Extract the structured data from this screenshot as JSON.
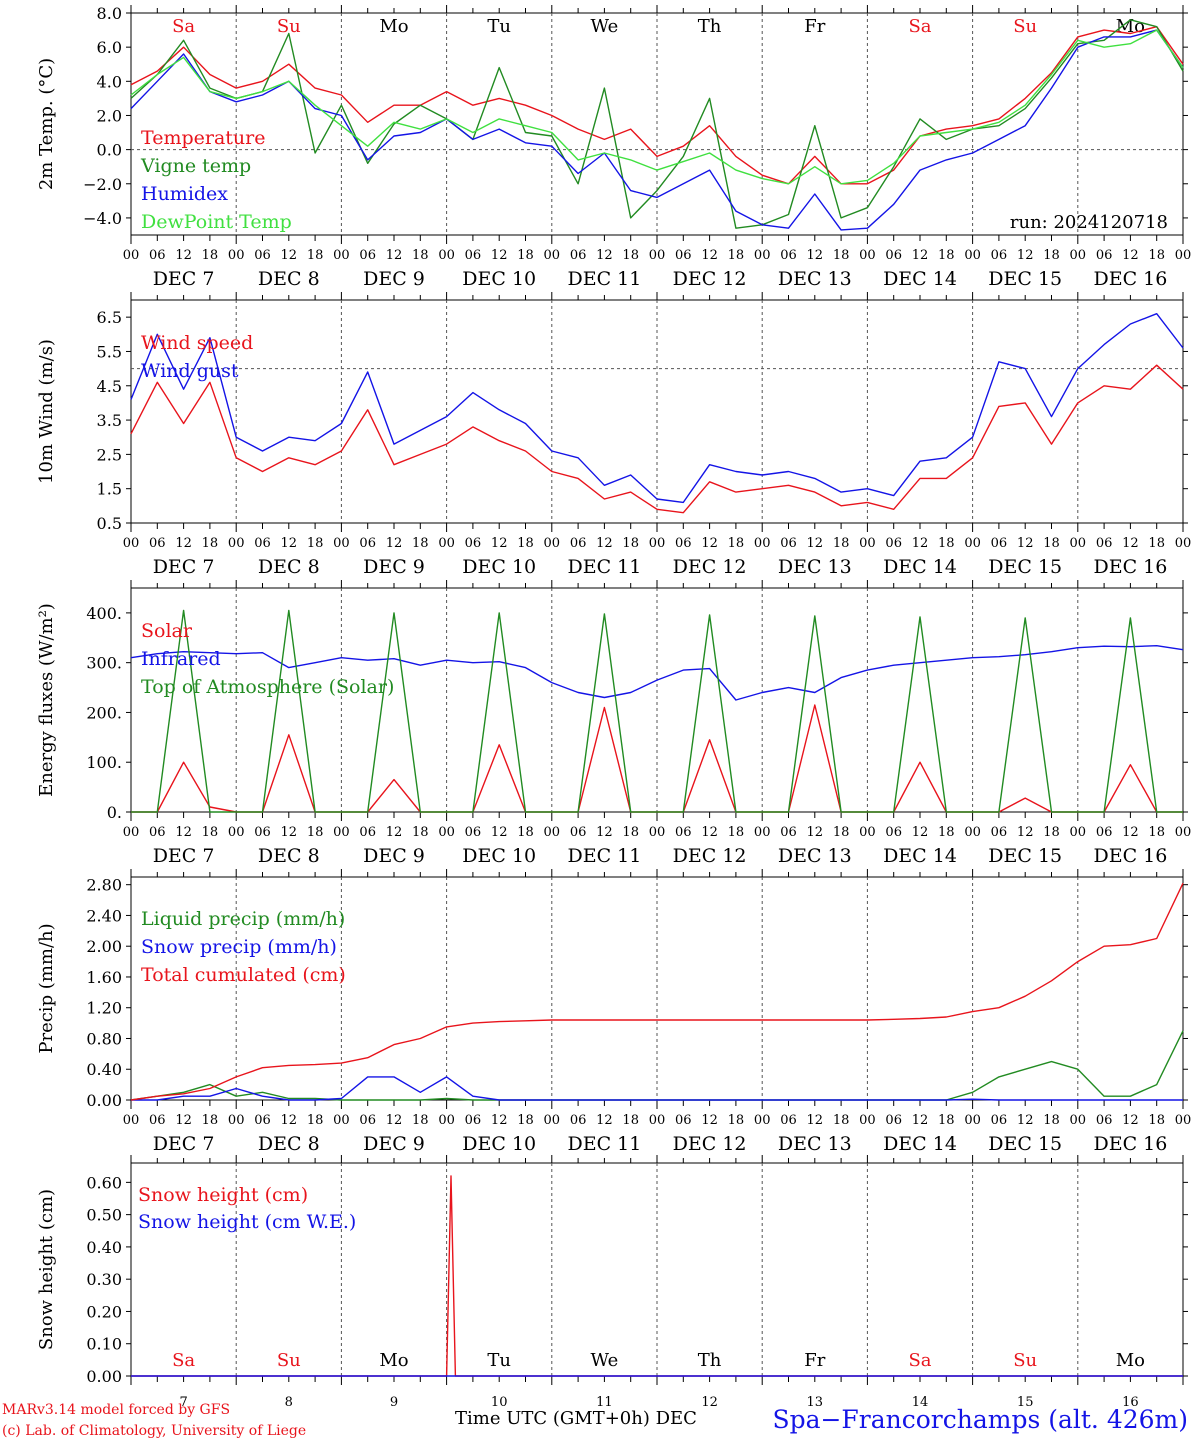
{
  "meta": {
    "run": "run: 2024120718",
    "footer_model": "MARv3.14 model forced by GFS",
    "footer_lab": "(c) Lab. of Climatology, University of Liege",
    "location": "Spa−Francorchamps (alt. 426m)",
    "xaxis_title": "Time UTC (GMT+0h) DEC"
  },
  "days": [
    {
      "abbr": "Sa",
      "date": "DEC  7",
      "num": "7",
      "weekend": true
    },
    {
      "abbr": "Su",
      "date": "DEC  8",
      "num": "8",
      "weekend": true
    },
    {
      "abbr": "Mo",
      "date": "DEC  9",
      "num": "9",
      "weekend": false
    },
    {
      "abbr": "Tu",
      "date": "DEC 10",
      "num": "10",
      "weekend": false
    },
    {
      "abbr": "We",
      "date": "DEC 11",
      "num": "11",
      "weekend": false
    },
    {
      "abbr": "Th",
      "date": "DEC 12",
      "num": "12",
      "weekend": false
    },
    {
      "abbr": "Fr",
      "date": "DEC 13",
      "num": "13",
      "weekend": false
    },
    {
      "abbr": "Sa",
      "date": "DEC 14",
      "num": "14",
      "weekend": true
    },
    {
      "abbr": "Su",
      "date": "DEC 15",
      "num": "15",
      "weekend": true
    },
    {
      "abbr": "Mo",
      "date": "DEC 16",
      "num": "16",
      "weekend": false
    }
  ],
  "hour_ticks": [
    "00",
    "06",
    "12",
    "18"
  ],
  "colors": {
    "red": "#e8141c",
    "green": "#228b22",
    "blue": "#1414e6",
    "lightgreen": "#40e040",
    "weekend": "#e8141c",
    "dash": "#555555"
  },
  "chart_data": [
    {
      "type": "line",
      "ylabel": "2m Temp. (°C)",
      "ylim": [
        -5.0,
        8.0
      ],
      "yticks": [
        -4,
        -2,
        0,
        2,
        4,
        6,
        8
      ],
      "ytick_labels": [
        "−4.0",
        "−2.0",
        "0.0",
        "2.0",
        "4.0",
        "6.0",
        "8.0"
      ],
      "refline": 0,
      "show_day_abbr": true,
      "x_hours": [
        0,
        6,
        12,
        18,
        24,
        30,
        36,
        42,
        48,
        54,
        60,
        66,
        72,
        78,
        84,
        90,
        96,
        102,
        108,
        114,
        120,
        126,
        132,
        138,
        144,
        150,
        156,
        162,
        168,
        174,
        180,
        186,
        192,
        198,
        204,
        210,
        216,
        222,
        228,
        234,
        240
      ],
      "series": [
        {
          "name": "Temperature",
          "color": "red",
          "values": [
            3.8,
            4.6,
            6.0,
            4.4,
            3.6,
            4.0,
            5.0,
            3.6,
            3.2,
            1.6,
            2.6,
            2.6,
            3.4,
            2.6,
            3.0,
            2.6,
            2.0,
            1.2,
            0.6,
            1.2,
            -0.4,
            0.2,
            1.4,
            -0.4,
            -1.5,
            -2.0,
            -0.4,
            -2.0,
            -2.0,
            -1.2,
            0.8,
            1.2,
            1.4,
            1.8,
            3.0,
            4.5,
            6.6,
            7.0,
            6.8,
            7.2,
            5.0
          ]
        },
        {
          "name": "Vigne temp",
          "color": "green",
          "values": [
            3.0,
            4.4,
            6.4,
            3.6,
            3.0,
            3.4,
            6.8,
            -0.2,
            2.6,
            -0.8,
            1.5,
            2.6,
            1.8,
            0.6,
            4.8,
            1.0,
            0.8,
            -2.0,
            3.6,
            -4.0,
            -2.4,
            -0.4,
            3.0,
            -4.6,
            -4.4,
            -3.8,
            1.4,
            -4.0,
            -3.4,
            -1.0,
            1.8,
            0.6,
            1.2,
            1.4,
            2.4,
            4.2,
            6.2,
            6.4,
            7.6,
            7.2,
            4.6
          ]
        },
        {
          "name": "Humidex",
          "color": "blue",
          "values": [
            2.4,
            4.0,
            5.6,
            3.4,
            2.8,
            3.2,
            4.0,
            2.4,
            2.0,
            -0.6,
            0.8,
            1.0,
            1.8,
            0.6,
            1.2,
            0.4,
            0.2,
            -1.4,
            -0.2,
            -2.4,
            -2.8,
            -2.0,
            -1.2,
            -3.6,
            -4.4,
            -4.6,
            -2.6,
            -4.7,
            -4.6,
            -3.2,
            -1.2,
            -0.6,
            -0.2,
            0.6,
            1.4,
            3.6,
            6.0,
            6.6,
            6.6,
            7.0,
            4.8
          ]
        },
        {
          "name": "DewPoint Temp",
          "color": "lightgreen",
          "values": [
            3.2,
            4.4,
            5.4,
            3.4,
            3.0,
            3.4,
            4.0,
            2.6,
            1.4,
            0.2,
            1.6,
            1.2,
            1.8,
            1.0,
            1.8,
            1.4,
            1.0,
            -0.6,
            -0.2,
            -0.6,
            -1.2,
            -0.7,
            -0.2,
            -1.2,
            -1.7,
            -2.0,
            -1.0,
            -2.0,
            -1.8,
            -0.8,
            0.8,
            1.0,
            1.2,
            1.6,
            2.6,
            4.4,
            6.4,
            6.0,
            6.2,
            7.0,
            4.8
          ]
        }
      ]
    },
    {
      "type": "line",
      "ylabel": "10m Wind (m/s)",
      "ylim": [
        0.5,
        7.0
      ],
      "yticks": [
        0.5,
        1.5,
        2.5,
        3.5,
        4.5,
        5.5,
        6.5
      ],
      "ytick_labels": [
        "0.5",
        "1.5",
        "2.5",
        "3.5",
        "4.5",
        "5.5",
        "6.5"
      ],
      "refline": 5.0,
      "show_day_abbr": false,
      "x_hours": [
        0,
        6,
        12,
        18,
        24,
        30,
        36,
        42,
        48,
        54,
        60,
        66,
        72,
        78,
        84,
        90,
        96,
        102,
        108,
        114,
        120,
        126,
        132,
        138,
        144,
        150,
        156,
        162,
        168,
        174,
        180,
        186,
        192,
        198,
        204,
        210,
        216,
        222,
        228,
        234,
        240
      ],
      "series": [
        {
          "name": "Wind speed",
          "color": "red",
          "values": [
            3.1,
            4.6,
            3.4,
            4.6,
            2.4,
            2.0,
            2.4,
            2.2,
            2.6,
            3.8,
            2.2,
            2.5,
            2.8,
            3.3,
            2.9,
            2.6,
            2.0,
            1.8,
            1.2,
            1.4,
            0.9,
            0.8,
            1.7,
            1.4,
            1.5,
            1.6,
            1.4,
            1.0,
            1.1,
            0.9,
            1.8,
            1.8,
            2.4,
            3.9,
            4.0,
            2.8,
            4.0,
            4.5,
            4.4,
            5.1,
            4.4
          ]
        },
        {
          "name": "Wind gust",
          "color": "blue",
          "values": [
            4.1,
            6.0,
            4.4,
            5.9,
            3.0,
            2.6,
            3.0,
            2.9,
            3.4,
            4.9,
            2.8,
            3.2,
            3.6,
            4.3,
            3.8,
            3.4,
            2.6,
            2.4,
            1.6,
            1.9,
            1.2,
            1.1,
            2.2,
            2.0,
            1.9,
            2.0,
            1.8,
            1.4,
            1.5,
            1.3,
            2.3,
            2.4,
            3.0,
            5.2,
            5.0,
            3.6,
            5.0,
            5.7,
            6.3,
            6.6,
            5.6
          ]
        }
      ]
    },
    {
      "type": "line",
      "ylabel": "Energy fluxes (W/m²)",
      "ylim": [
        0,
        450
      ],
      "yticks": [
        0,
        100,
        200,
        300,
        400
      ],
      "ytick_labels": [
        "0.",
        "100.",
        "200.",
        "300.",
        "400."
      ],
      "refline": null,
      "show_day_abbr": false,
      "x_hours": [
        0,
        6,
        12,
        18,
        24,
        30,
        36,
        42,
        48,
        54,
        60,
        66,
        72,
        78,
        84,
        90,
        96,
        102,
        108,
        114,
        120,
        126,
        132,
        138,
        144,
        150,
        156,
        162,
        168,
        174,
        180,
        186,
        192,
        198,
        204,
        210,
        216,
        222,
        228,
        234,
        240
      ],
      "series": [
        {
          "name": "Solar",
          "color": "red",
          "values": [
            0,
            0,
            100,
            10,
            0,
            0,
            155,
            0,
            0,
            0,
            65,
            0,
            0,
            0,
            135,
            0,
            0,
            0,
            210,
            0,
            0,
            0,
            145,
            0,
            0,
            0,
            215,
            0,
            0,
            0,
            100,
            0,
            0,
            0,
            28,
            0,
            0,
            0,
            95,
            0,
            0
          ]
        },
        {
          "name": "Infrared",
          "color": "blue",
          "values": [
            310,
            318,
            322,
            320,
            318,
            320,
            290,
            300,
            310,
            305,
            308,
            295,
            305,
            300,
            302,
            290,
            260,
            240,
            230,
            240,
            265,
            285,
            288,
            225,
            240,
            250,
            240,
            270,
            285,
            295,
            300,
            305,
            310,
            312,
            316,
            322,
            330,
            333,
            332,
            334,
            326
          ]
        },
        {
          "name": "Top of Atmosphere (Solar)",
          "color": "green",
          "values": [
            0,
            0,
            405,
            0,
            0,
            0,
            405,
            0,
            0,
            0,
            400,
            0,
            0,
            0,
            400,
            0,
            0,
            0,
            398,
            0,
            0,
            0,
            396,
            0,
            0,
            0,
            394,
            0,
            0,
            0,
            392,
            0,
            0,
            0,
            390,
            0,
            0,
            0,
            390,
            0,
            0
          ]
        }
      ]
    },
    {
      "type": "line",
      "ylabel": "Precip (mm/h)",
      "ylim": [
        0,
        2.9
      ],
      "yticks": [
        0,
        0.4,
        0.8,
        1.2,
        1.6,
        2.0,
        2.4,
        2.8
      ],
      "ytick_labels": [
        "0.00",
        "0.40",
        "0.80",
        "1.20",
        "1.60",
        "2.00",
        "2.40",
        "2.80"
      ],
      "refline": null,
      "show_day_abbr": false,
      "x_hours": [
        0,
        6,
        12,
        18,
        24,
        30,
        36,
        42,
        48,
        54,
        60,
        66,
        72,
        78,
        84,
        90,
        96,
        102,
        108,
        114,
        120,
        126,
        132,
        138,
        144,
        150,
        156,
        162,
        168,
        174,
        180,
        186,
        192,
        198,
        204,
        210,
        216,
        222,
        228,
        234,
        240
      ],
      "series": [
        {
          "name": "Liquid precip (mm/h)",
          "color": "green",
          "values": [
            0,
            0.05,
            0.1,
            0.2,
            0.05,
            0.1,
            0.02,
            0.02,
            0,
            0,
            0,
            0,
            0.02,
            0,
            0,
            0,
            0,
            0,
            0,
            0,
            0,
            0,
            0,
            0,
            0,
            0,
            0,
            0,
            0,
            0,
            0,
            0,
            0.1,
            0.3,
            0.4,
            0.5,
            0.4,
            0.05,
            0.05,
            0.2,
            0.9
          ]
        },
        {
          "name": "Snow precip (mm/h)",
          "color": "blue",
          "values": [
            0,
            0,
            0.05,
            0.05,
            0.15,
            0.05,
            0,
            0,
            0.02,
            0.3,
            0.3,
            0.1,
            0.3,
            0.05,
            0,
            0,
            0,
            0,
            0,
            0,
            0,
            0,
            0,
            0,
            0,
            0,
            0,
            0,
            0,
            0,
            0,
            0,
            0.01,
            0,
            0,
            0,
            0,
            0,
            0,
            0,
            0
          ]
        },
        {
          "name": "Total cumulated (cm)",
          "color": "red",
          "values": [
            0,
            0.05,
            0.08,
            0.15,
            0.3,
            0.42,
            0.45,
            0.46,
            0.48,
            0.55,
            0.72,
            0.8,
            0.95,
            1.0,
            1.02,
            1.03,
            1.04,
            1.04,
            1.04,
            1.04,
            1.04,
            1.04,
            1.04,
            1.04,
            1.04,
            1.04,
            1.04,
            1.04,
            1.04,
            1.05,
            1.06,
            1.08,
            1.15,
            1.2,
            1.35,
            1.55,
            1.8,
            2.0,
            2.02,
            2.1,
            2.82
          ]
        }
      ]
    },
    {
      "type": "line",
      "ylabel": "Snow height (cm)",
      "ylim": [
        0,
        0.66
      ],
      "yticks": [
        0,
        0.1,
        0.2,
        0.3,
        0.4,
        0.5,
        0.6
      ],
      "ytick_labels": [
        "0.00",
        "0.10",
        "0.20",
        "0.30",
        "0.40",
        "0.50",
        "0.60"
      ],
      "refline": null,
      "show_day_abbr": false,
      "x_hours": [
        0,
        6,
        12,
        18,
        24,
        30,
        36,
        42,
        48,
        54,
        60,
        66,
        70,
        72,
        73,
        74,
        78,
        84,
        90,
        96,
        102,
        108,
        114,
        120,
        126,
        132,
        138,
        144,
        150,
        156,
        162,
        168,
        174,
        180,
        186,
        192,
        198,
        204,
        210,
        216,
        222,
        228,
        234,
        240
      ],
      "series": [
        {
          "name": "Snow height (cm)",
          "color": "red",
          "values": [
            0,
            0,
            0,
            0,
            0,
            0,
            0,
            0,
            0,
            0,
            0,
            0,
            0,
            0,
            0.62,
            0,
            0,
            0,
            0,
            0,
            0,
            0,
            0,
            0,
            0,
            0,
            0,
            0,
            0,
            0,
            0,
            0,
            0,
            0,
            0,
            0,
            0,
            0,
            0,
            0,
            0,
            0,
            0,
            0
          ]
        },
        {
          "name": "Snow height (cm W.E.)",
          "color": "blue",
          "values": [
            0,
            0,
            0,
            0,
            0,
            0,
            0,
            0,
            0,
            0,
            0,
            0,
            0,
            0,
            0,
            0,
            0,
            0,
            0,
            0,
            0,
            0,
            0,
            0,
            0,
            0,
            0,
            0,
            0,
            0,
            0,
            0,
            0,
            0,
            0,
            0,
            0,
            0,
            0,
            0,
            0,
            0,
            0,
            0
          ]
        }
      ]
    }
  ]
}
